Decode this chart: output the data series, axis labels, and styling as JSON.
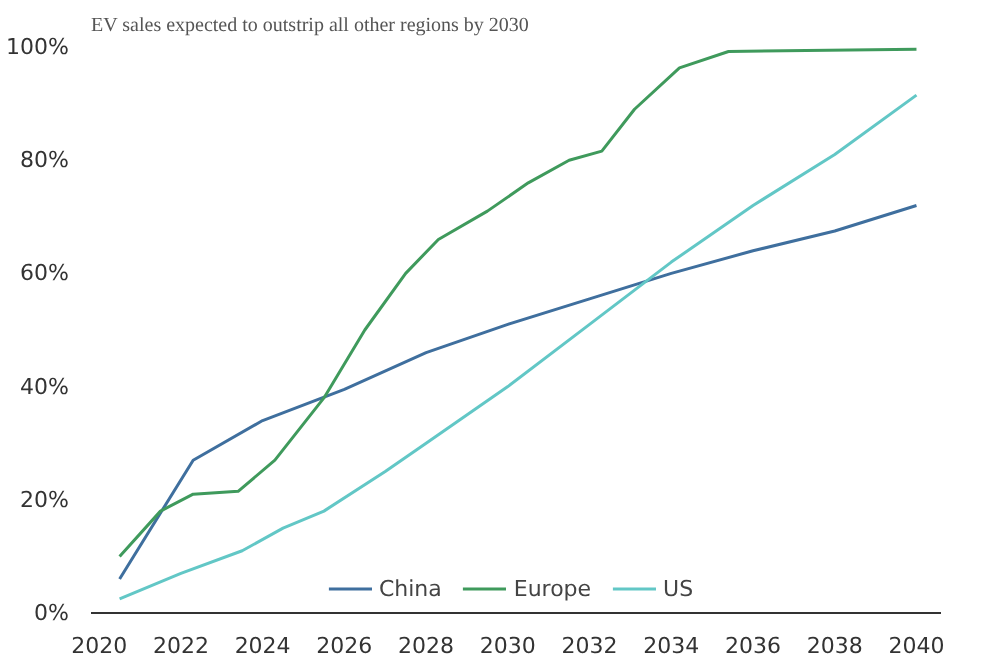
{
  "chart_data": {
    "type": "line",
    "title": "EV sales expected to outstrip all other regions by 2030",
    "ylim": [
      0,
      100
    ],
    "yticks": [
      {
        "value": 0,
        "label": "0%"
      },
      {
        "value": 20,
        "label": "20%"
      },
      {
        "value": 40,
        "label": "40%"
      },
      {
        "value": 60,
        "label": "60%"
      },
      {
        "value": 80,
        "label": "80%"
      },
      {
        "value": 100,
        "label": "100%"
      }
    ],
    "xlim": [
      2019.8,
      2040.6
    ],
    "xticks": [
      2020,
      2022,
      2024,
      2026,
      2028,
      2030,
      2032,
      2034,
      2036,
      2038,
      2040
    ],
    "grid": false,
    "legend": "bottom",
    "marker": "none",
    "line_style": "solid",
    "series": [
      {
        "name": "China",
        "color": "#3f6f9e",
        "x": [
          2020.5,
          2022.3,
          2024,
          2026,
          2028,
          2030,
          2032,
          2034,
          2036,
          2038,
          2040
        ],
        "values": [
          6,
          27,
          34,
          39.5,
          46,
          51,
          55.5,
          60,
          64,
          67.5,
          72
        ]
      },
      {
        "name": "Europe",
        "color": "#3f9a5c",
        "x": [
          2020.5,
          2021.5,
          2022.3,
          2023.4,
          2024.3,
          2025.5,
          2026.5,
          2027.5,
          2028.3,
          2029.5,
          2030.5,
          2031.5,
          2032.3,
          2033.1,
          2034.2,
          2035.4,
          2040
        ],
        "values": [
          10,
          18,
          21,
          21.5,
          27,
          38,
          50,
          60,
          66,
          71,
          76,
          80,
          81.6,
          89,
          96.3,
          99.2,
          99.6
        ]
      },
      {
        "name": "US",
        "color": "#62c7c6",
        "x": [
          2020.5,
          2022,
          2023.5,
          2024.5,
          2025.5,
          2027,
          2028,
          2030,
          2032,
          2034,
          2036,
          2038,
          2040
        ],
        "values": [
          2.5,
          7,
          11,
          15,
          18,
          25,
          30,
          40,
          51,
          62,
          72,
          81,
          91.5
        ]
      }
    ]
  }
}
